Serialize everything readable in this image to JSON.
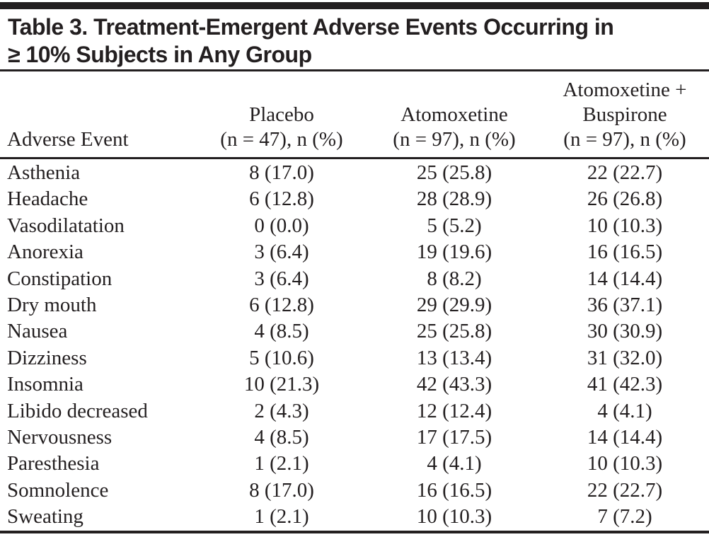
{
  "title": {
    "lines": [
      "Table 3. Treatment-Emergent Adverse Events Occurring in",
      "≥ 10% Subjects in Any Group"
    ]
  },
  "table": {
    "columns": [
      {
        "key": "event",
        "label_lines": [
          "Adverse Event"
        ]
      },
      {
        "key": "placebo",
        "label_lines": [
          "Placebo",
          "(n = 47), n (%)"
        ]
      },
      {
        "key": "atomoxetine",
        "label_lines": [
          "Atomoxetine",
          "(n = 97), n (%)"
        ]
      },
      {
        "key": "atomoxetine_buspirone",
        "label_lines": [
          "Atomoxetine +",
          "Buspirone",
          "(n = 97), n (%)"
        ]
      }
    ],
    "rows": [
      {
        "event": "Asthenia",
        "placebo": "8 (17.0)",
        "atomoxetine": "25 (25.8)",
        "atomoxetine_buspirone": "22 (22.7)"
      },
      {
        "event": "Headache",
        "placebo": "6 (12.8)",
        "atomoxetine": "28 (28.9)",
        "atomoxetine_buspirone": "26 (26.8)"
      },
      {
        "event": "Vasodilatation",
        "placebo": "0 (0.0)",
        "atomoxetine": "5 (5.2)",
        "atomoxetine_buspirone": "10 (10.3)"
      },
      {
        "event": "Anorexia",
        "placebo": "3 (6.4)",
        "atomoxetine": "19 (19.6)",
        "atomoxetine_buspirone": "16 (16.5)"
      },
      {
        "event": "Constipation",
        "placebo": "3 (6.4)",
        "atomoxetine": "8 (8.2)",
        "atomoxetine_buspirone": "14 (14.4)"
      },
      {
        "event": "Dry mouth",
        "placebo": "6 (12.8)",
        "atomoxetine": "29 (29.9)",
        "atomoxetine_buspirone": "36 (37.1)"
      },
      {
        "event": "Nausea",
        "placebo": "4 (8.5)",
        "atomoxetine": "25 (25.8)",
        "atomoxetine_buspirone": "30 (30.9)"
      },
      {
        "event": "Dizziness",
        "placebo": "5 (10.6)",
        "atomoxetine": "13 (13.4)",
        "atomoxetine_buspirone": "31 (32.0)"
      },
      {
        "event": "Insomnia",
        "placebo": "10 (21.3)",
        "atomoxetine": "42 (43.3)",
        "atomoxetine_buspirone": "41 (42.3)"
      },
      {
        "event": "Libido decreased",
        "placebo": "2 (4.3)",
        "atomoxetine": "12 (12.4)",
        "atomoxetine_buspirone": "4 (4.1)"
      },
      {
        "event": "Nervousness",
        "placebo": "4 (8.5)",
        "atomoxetine": "17 (17.5)",
        "atomoxetine_buspirone": "14 (14.4)"
      },
      {
        "event": "Paresthesia",
        "placebo": "1 (2.1)",
        "atomoxetine": "4 (4.1)",
        "atomoxetine_buspirone": "10 (10.3)"
      },
      {
        "event": "Somnolence",
        "placebo": "8 (17.0)",
        "atomoxetine": "16 (16.5)",
        "atomoxetine_buspirone": "22 (22.7)"
      },
      {
        "event": "Sweating",
        "placebo": "1 (2.1)",
        "atomoxetine": "10 (10.3)",
        "atomoxetine_buspirone": "7 (7.2)"
      }
    ]
  },
  "colors": {
    "ink": "#231f20",
    "background": "#ffffff"
  }
}
